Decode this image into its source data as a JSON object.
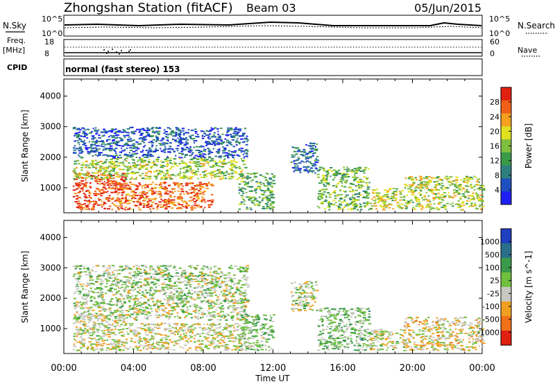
{
  "header": {
    "station": "Zhongshan Station (fitACF)",
    "beam": "Beam 03",
    "date": "05/Jun/2015"
  },
  "top_panels": {
    "nsky_label": "N.Sky",
    "nsky_ticks": [
      "10^5",
      "10^0"
    ],
    "nsearch_label": "N.Search",
    "freq_label": "Freq.",
    "freq_unit": "[MHz]",
    "freq_ticks": [
      "18",
      "8"
    ],
    "nave_label": "Nave",
    "nave_ticks": [
      "60",
      "0"
    ],
    "cpid_label": "CPID",
    "cpid_text": "normal (fast stereo) 153"
  },
  "chart_data": [
    {
      "type": "heatmap",
      "title": "",
      "xlabel": "Time UT",
      "ylabel": "Slant Range [km]",
      "x_ticks": [
        "00:00",
        "04:00",
        "08:00",
        "12:00",
        "16:00",
        "20:00",
        "00:00"
      ],
      "xlim_hours": [
        0,
        24
      ],
      "y_ticks": [
        1000,
        2000,
        3000,
        4000
      ],
      "ylim": [
        180,
        4560
      ],
      "colorbar": {
        "label": "Power [dB]",
        "ticks": [
          "4",
          "8",
          "12",
          "16",
          "20",
          "24",
          "28"
        ],
        "range": [
          0,
          30
        ],
        "colors": [
          "#1f1ff5",
          "#1f4fbf",
          "#2f7f7f",
          "#3a9a4a",
          "#7fbf3f",
          "#e0e020",
          "#f5a020",
          "#f06018",
          "#e02010"
        ]
      },
      "regions": [
        {
          "t": [
            0.5,
            3.5
          ],
          "r": [
            300,
            1500
          ],
          "v": 27
        },
        {
          "t": [
            3.0,
            8.5
          ],
          "r": [
            300,
            1200
          ],
          "v": 25
        },
        {
          "t": [
            0.5,
            10.5
          ],
          "r": [
            1300,
            2000
          ],
          "v": 16
        },
        {
          "t": [
            0.5,
            10.5
          ],
          "r": [
            2000,
            3000
          ],
          "v": 6
        },
        {
          "t": [
            10.0,
            12.0
          ],
          "r": [
            300,
            1500
          ],
          "v": 12
        },
        {
          "t": [
            13.0,
            14.5
          ],
          "r": [
            1500,
            2500
          ],
          "v": 7
        },
        {
          "t": [
            14.5,
            17.5
          ],
          "r": [
            300,
            1700
          ],
          "v": 14
        },
        {
          "t": [
            17.5,
            19.5
          ],
          "r": [
            300,
            1000
          ],
          "v": 18
        },
        {
          "t": [
            19.5,
            24.0
          ],
          "r": [
            300,
            1400
          ],
          "v": 17
        }
      ]
    },
    {
      "type": "heatmap",
      "title": "",
      "xlabel": "Time UT",
      "ylabel": "Slant Range [km]",
      "x_ticks": [
        "00:00",
        "04:00",
        "08:00",
        "12:00",
        "16:00",
        "20:00",
        "00:00"
      ],
      "xlim_hours": [
        0,
        24
      ],
      "y_ticks": [
        1000,
        2000,
        3000,
        4000
      ],
      "ylim": [
        180,
        4560
      ],
      "colorbar": {
        "label": "Velocity [m s^-1]",
        "ticks": [
          "1000",
          "500",
          "100",
          "25",
          "-25",
          "-100",
          "-500",
          "-1000"
        ],
        "range": [
          -1200,
          1200
        ],
        "colors": [
          "#2040c0",
          "#2a6f8a",
          "#3a9a4a",
          "#70c040",
          "#c8c8c0",
          "#f0a020",
          "#f07018",
          "#e02010"
        ]
      },
      "regions": [
        {
          "t": [
            0.5,
            4.0
          ],
          "r": [
            300,
            1500
          ],
          "v": -90
        },
        {
          "t": [
            4.0,
            10.5
          ],
          "r": [
            300,
            1200
          ],
          "v": -150
        },
        {
          "t": [
            0.5,
            10.5
          ],
          "r": [
            1300,
            3100
          ],
          "v": 0
        },
        {
          "t": [
            10.0,
            12.0
          ],
          "r": [
            300,
            1500
          ],
          "v": 120
        },
        {
          "t": [
            13.0,
            14.5
          ],
          "r": [
            1600,
            2600
          ],
          "v": 5
        },
        {
          "t": [
            14.5,
            17.5
          ],
          "r": [
            300,
            1700
          ],
          "v": 180
        },
        {
          "t": [
            17.5,
            19.5
          ],
          "r": [
            300,
            1000
          ],
          "v": -80
        },
        {
          "t": [
            19.5,
            24.0
          ],
          "r": [
            300,
            1400
          ],
          "v": -250
        }
      ]
    }
  ]
}
